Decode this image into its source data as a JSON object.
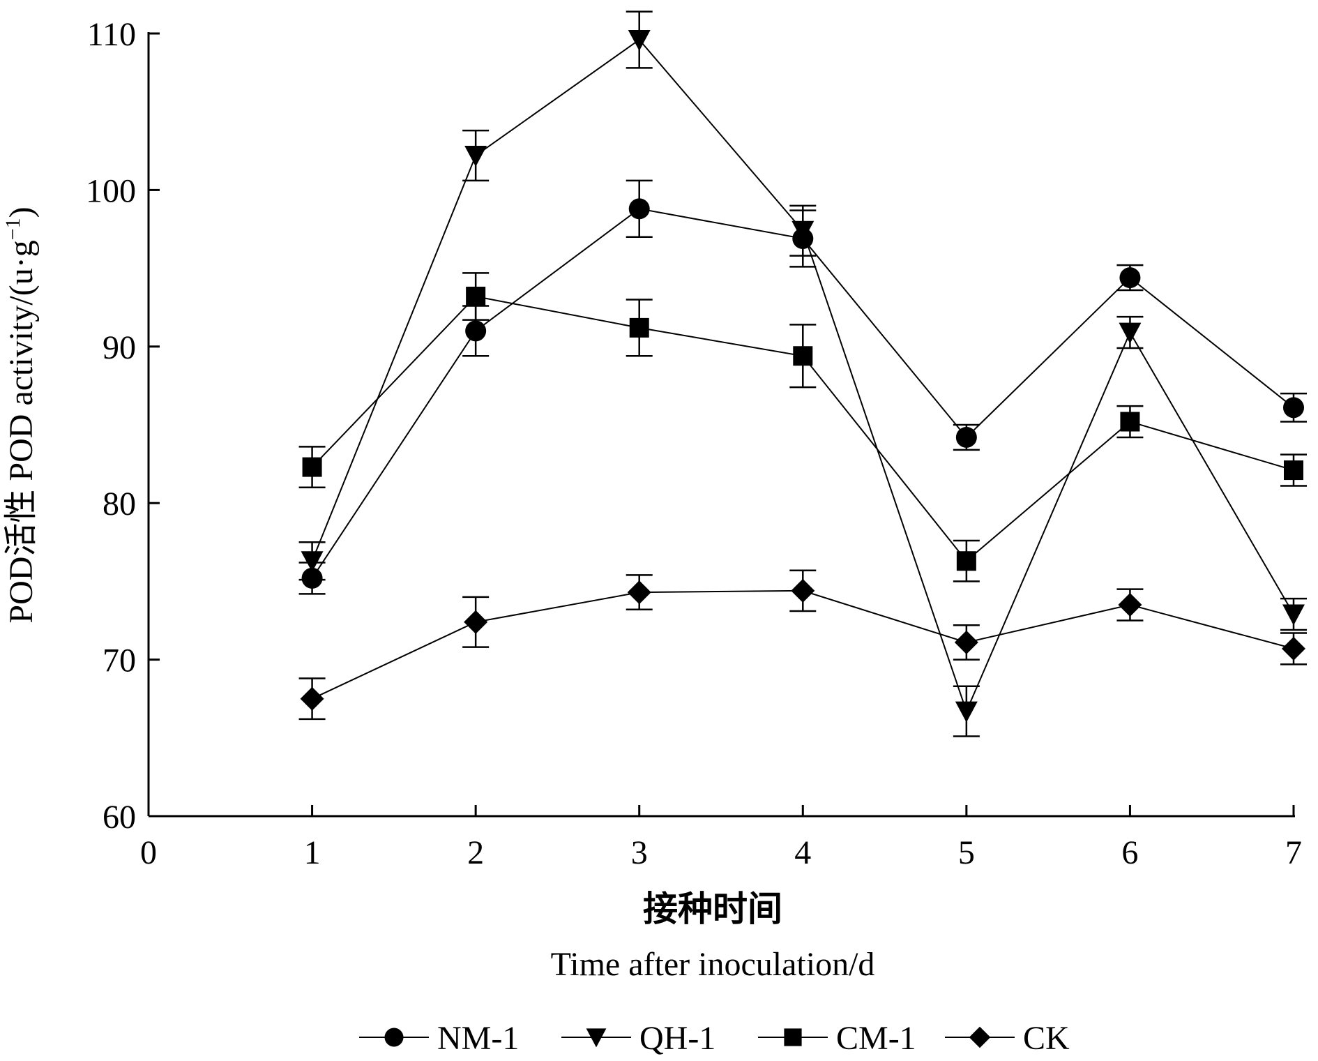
{
  "chart_data": {
    "type": "line",
    "ylabel": "POD活性  POD activity/(u·g⁻¹)",
    "ylabel_parts": {
      "cn": "POD活性",
      "en": "POD activity/(u·g",
      "sup": "−1",
      "close": ")"
    },
    "xlabel_cn": "接种时间",
    "xlabel_en": "Time after inoculation/d",
    "xlim": [
      0,
      7
    ],
    "ylim": [
      60,
      110
    ],
    "x_ticks": [
      0,
      1,
      2,
      3,
      4,
      5,
      6,
      7
    ],
    "y_ticks": [
      60,
      70,
      80,
      90,
      100,
      110
    ],
    "x": [
      1,
      2,
      3,
      4,
      5,
      6,
      7
    ],
    "grid": false,
    "legend_position": "bottom",
    "series": [
      {
        "name": "NM-1",
        "marker": "circle",
        "values": [
          75.2,
          91.0,
          98.8,
          96.9,
          84.2,
          94.4,
          86.1
        ],
        "errors": [
          1.0,
          1.6,
          1.8,
          1.8,
          0.8,
          0.8,
          0.9
        ]
      },
      {
        "name": "QH-1",
        "marker": "triangle-down",
        "values": [
          76.3,
          102.2,
          109.6,
          97.4,
          66.7,
          90.9,
          72.9
        ],
        "errors": [
          1.2,
          1.6,
          1.8,
          1.6,
          1.6,
          1.0,
          1.0
        ]
      },
      {
        "name": "CM-1",
        "marker": "square",
        "values": [
          82.3,
          93.2,
          91.2,
          89.4,
          76.3,
          85.2,
          82.1
        ],
        "errors": [
          1.3,
          1.5,
          1.8,
          2.0,
          1.3,
          1.0,
          1.0
        ]
      },
      {
        "name": "CK",
        "marker": "diamond",
        "values": [
          67.5,
          72.4,
          74.3,
          74.4,
          71.1,
          73.5,
          70.7
        ],
        "errors": [
          1.3,
          1.6,
          1.1,
          1.3,
          1.1,
          1.0,
          1.0
        ]
      }
    ]
  }
}
